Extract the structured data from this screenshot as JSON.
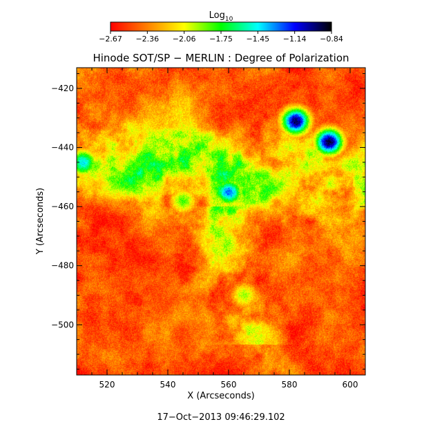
{
  "chart_data": {
    "type": "heatmap",
    "title": "Hinode SOT/SP − MERLIN : Degree of Polarization",
    "xlabel": "X (Arcseconds)",
    "ylabel": "Y (Arcseconds)",
    "xlim": [
      510,
      605
    ],
    "ylim": [
      -517,
      -413
    ],
    "x_ticks": [
      520,
      540,
      560,
      580,
      600
    ],
    "y_ticks": [
      -420,
      -440,
      -460,
      -480,
      -500
    ],
    "colorbar": {
      "label_base": "Log",
      "label_sub": "10",
      "range": [
        -2.67,
        -0.84
      ],
      "ticks": [
        "−2.67",
        "−2.36",
        "−2.06",
        "−1.75",
        "−1.45",
        "−1.14",
        "−0.84"
      ],
      "colormap": [
        "#ff0000",
        "#ff8000",
        "#ffff00",
        "#00ff00",
        "#00ffff",
        "#0000ff",
        "#000000"
      ]
    },
    "timestamp": "17−Oct−2013 09:46:29.102",
    "features": [
      {
        "name": "strong polarization patch",
        "x": 582,
        "y": -431,
        "value": -0.95
      },
      {
        "name": "strong polarization patch",
        "x": 593,
        "y": -438,
        "value": -0.9
      },
      {
        "name": "moderate patch",
        "x": 560,
        "y": -455,
        "value": -1.3
      },
      {
        "name": "moderate patch",
        "x": 512,
        "y": -445,
        "value": -1.4
      },
      {
        "name": "network lane",
        "x": 545,
        "y": -458,
        "value": -1.8
      },
      {
        "name": "network lane",
        "x": 565,
        "y": -490,
        "value": -1.9
      }
    ]
  }
}
